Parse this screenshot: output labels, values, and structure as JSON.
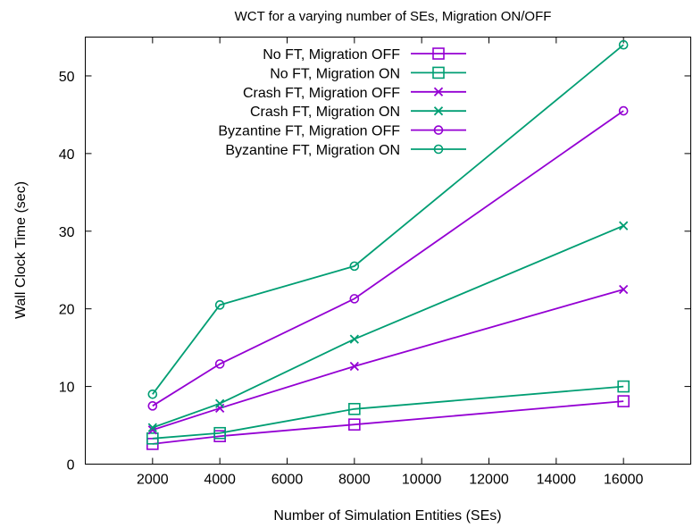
{
  "chart_data": {
    "type": "line",
    "title": "WCT for a varying number of SEs, Migration ON/OFF",
    "xlabel": "Number of Simulation Entities (SEs)",
    "ylabel": "Wall Clock Time (sec)",
    "xlim": [
      0,
      18000
    ],
    "ylim": [
      0,
      55
    ],
    "xticks": [
      2000,
      4000,
      6000,
      8000,
      10000,
      12000,
      14000,
      16000
    ],
    "yticks": [
      0,
      10,
      20,
      30,
      40,
      50
    ],
    "grid": false,
    "legend_position": "top-center",
    "x": [
      2000,
      4000,
      8000,
      16000
    ],
    "series": [
      {
        "name": "No FT, Migration OFF",
        "color": "#9400d3",
        "marker": "square",
        "values": [
          2.6,
          3.6,
          5.1,
          8.1
        ]
      },
      {
        "name": "No FT, Migration ON",
        "color": "#009e73",
        "marker": "square",
        "values": [
          3.3,
          4.0,
          7.1,
          10.0
        ]
      },
      {
        "name": "Crash FT, Migration OFF",
        "color": "#9400d3",
        "marker": "cross",
        "values": [
          4.4,
          7.2,
          12.6,
          22.5
        ]
      },
      {
        "name": "Crash FT, Migration ON",
        "color": "#009e73",
        "marker": "cross",
        "values": [
          4.7,
          7.8,
          16.1,
          30.7
        ]
      },
      {
        "name": "Byzantine FT, Migration OFF",
        "color": "#9400d3",
        "marker": "circle",
        "values": [
          7.5,
          12.9,
          21.3,
          45.5
        ]
      },
      {
        "name": "Byzantine FT, Migration ON",
        "color": "#009e73",
        "marker": "circle",
        "values": [
          9.0,
          20.5,
          25.5,
          54.0
        ]
      }
    ]
  }
}
